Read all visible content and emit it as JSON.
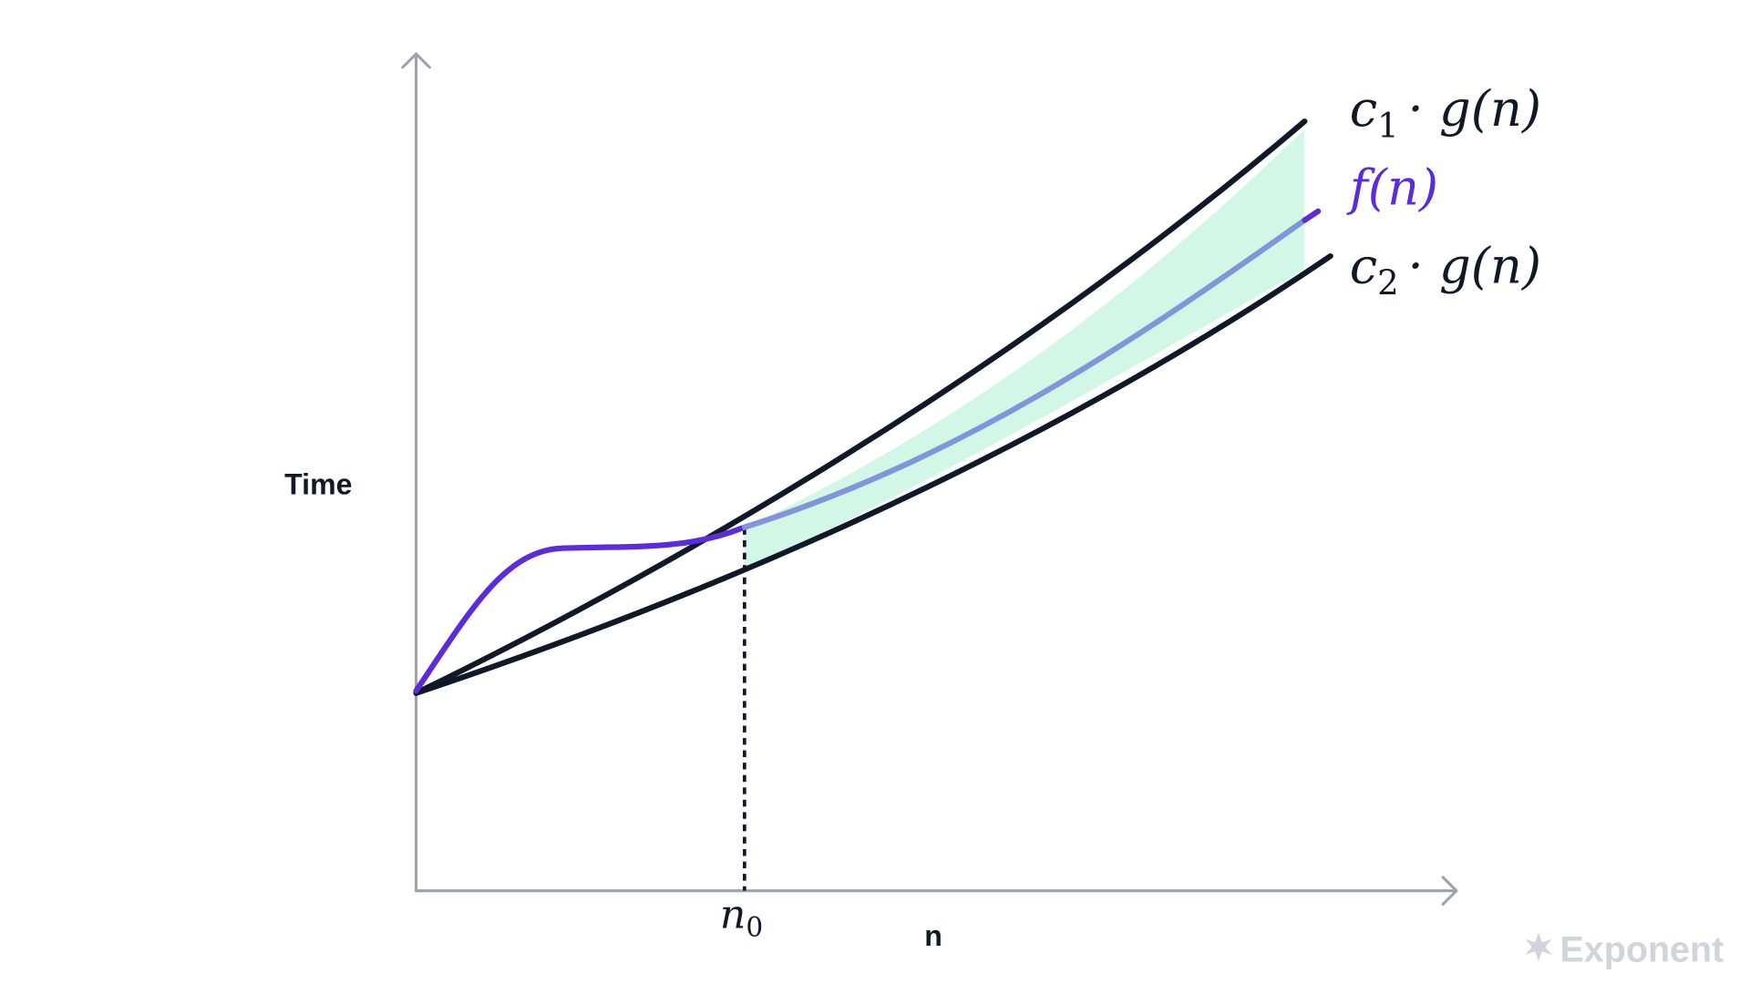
{
  "axes": {
    "y_label": "Time",
    "x_label": "n",
    "n0": {
      "base": "n",
      "sub": "0"
    }
  },
  "curves": [
    {
      "base": "c",
      "sub": "1",
      "rest": "· g(n)"
    },
    {
      "label": "f(n)"
    },
    {
      "base": "c",
      "sub": "2",
      "rest": "· g(n)"
    }
  ],
  "logo": "Exponent"
}
